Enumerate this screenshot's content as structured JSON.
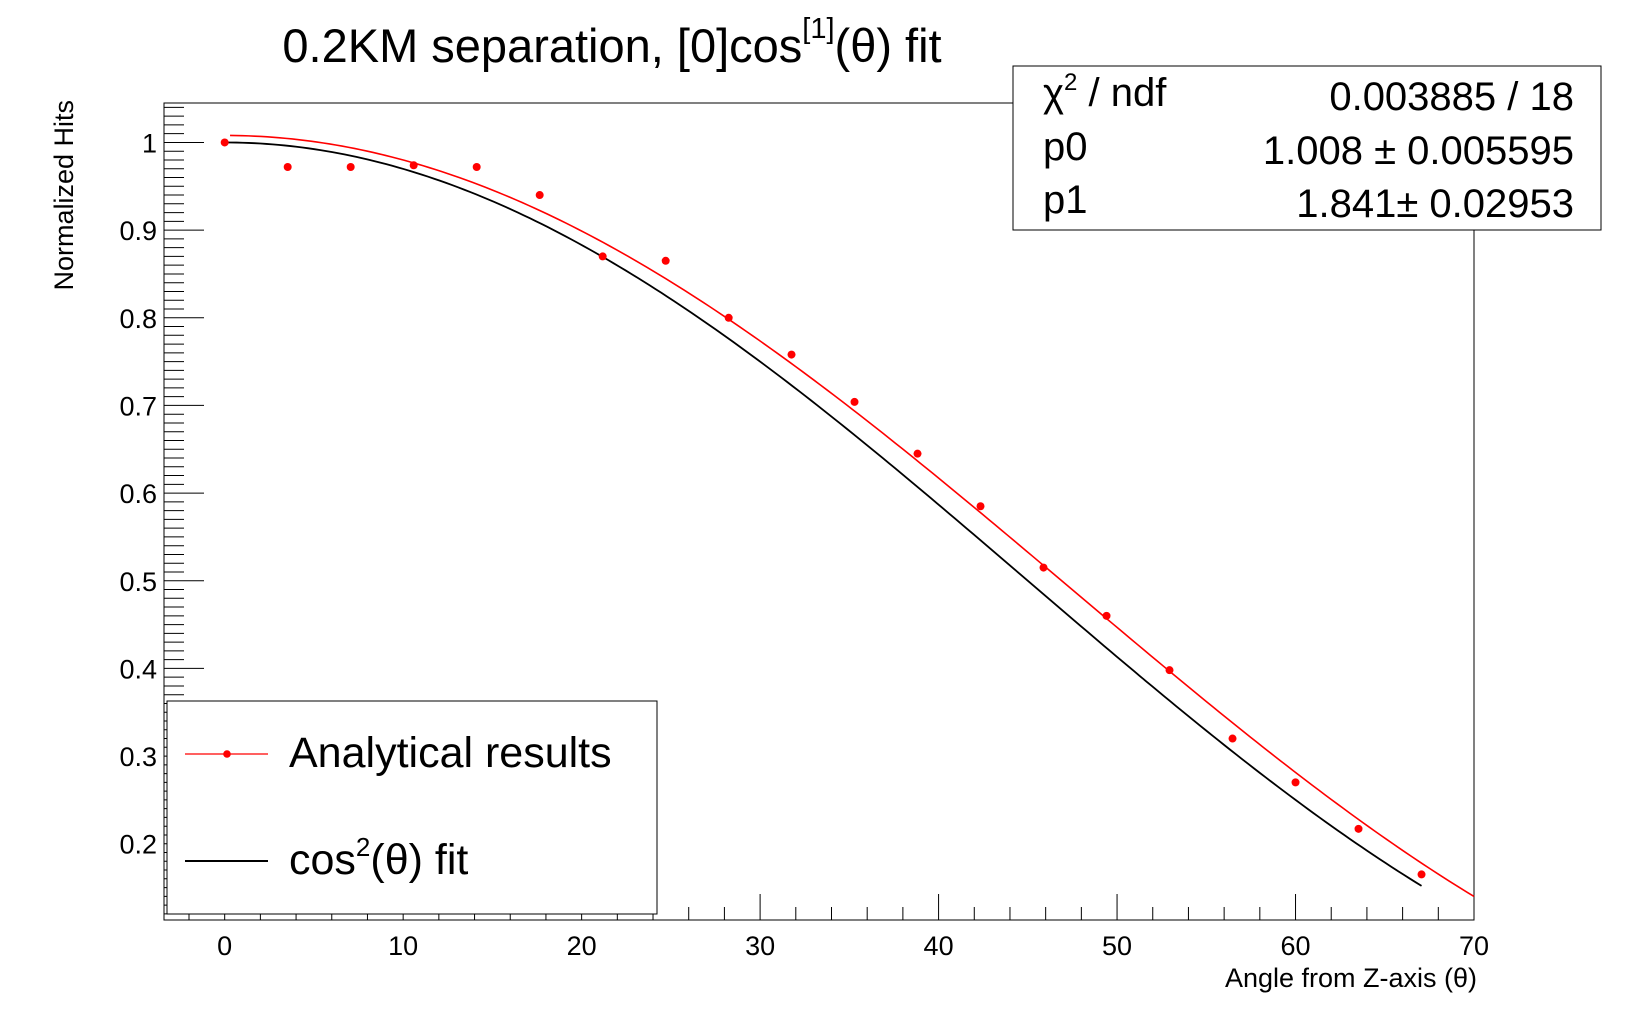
{
  "chart_data": {
    "type": "scatter",
    "title": {
      "main": "0.2KM separation, [0]cos",
      "sup": "[1]",
      "tail": "(θ) fit"
    },
    "xlabel": "Angle from Z-axis (θ)",
    "ylabel": "Normalized Hits",
    "xlim": [
      -3.4,
      70
    ],
    "ylim": [
      0.113,
      1.045
    ],
    "x_ticks": [
      0,
      10,
      20,
      30,
      40,
      50,
      60,
      70
    ],
    "y_ticks": [
      0.2,
      0.3,
      0.4,
      0.5,
      0.6,
      0.7,
      0.8,
      0.9,
      1
    ],
    "grid": false,
    "legend_position": "bottom-left",
    "series": [
      {
        "name": "Analytical results",
        "kind": "points",
        "color": "#ff0000",
        "x": [
          0,
          3.53,
          7.06,
          10.59,
          14.12,
          17.65,
          21.18,
          24.71,
          28.24,
          31.76,
          35.29,
          38.82,
          42.35,
          45.88,
          49.41,
          52.94,
          56.47,
          60.0,
          63.53,
          67.06
        ],
        "y": [
          1.0,
          0.972,
          0.972,
          0.974,
          0.972,
          0.94,
          0.87,
          0.865,
          0.8,
          0.758,
          0.704,
          0.645,
          0.585,
          0.515,
          0.46,
          0.398,
          0.32,
          0.27,
          0.217,
          0.165
        ]
      },
      {
        "name": "[0]cos^[1](θ) fit",
        "kind": "fit-curve",
        "color": "#ff0000",
        "model": "p0 * cos(theta)^p1",
        "p0": 1.008,
        "p1": 1.841,
        "x_range": [
          0.3,
          70
        ]
      },
      {
        "name": "cos²(θ) fit",
        "kind": "fit-curve",
        "color": "#000000",
        "model": "cos(theta)^2",
        "x_range": [
          0,
          67.06
        ]
      }
    ],
    "legend": [
      {
        "label_main": "Analytical results",
        "style": "points-line",
        "color": "#ff0000"
      },
      {
        "label_main": "cos",
        "label_sup": "2",
        "label_tail": "(θ) fit",
        "style": "line",
        "color": "#000000"
      }
    ],
    "stats_box": {
      "rows": [
        {
          "label_main": "χ",
          "label_sup": "2",
          "label_tail": " / ndf",
          "value": "0.003885 / 18"
        },
        {
          "label_main": "p0",
          "value": "1.008 ± 0.005595"
        },
        {
          "label_main": "p1",
          "value": "1.841± 0.02953"
        }
      ]
    }
  }
}
